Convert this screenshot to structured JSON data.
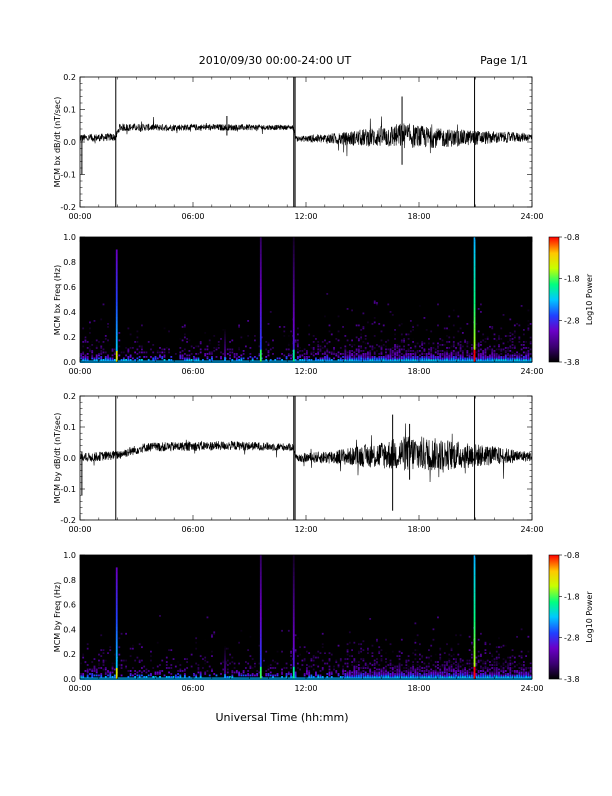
{
  "header": {
    "title": "2010/09/30  00:00-24:00 UT",
    "page": "Page 1/1"
  },
  "footer": {
    "xlabel": "Universal Time (hh:mm)"
  },
  "colors": {
    "spectrogram_background": "#000000",
    "trace": "#000000",
    "colormap": [
      "#000000",
      "#3a0070",
      "#6a00c8",
      "#2040ff",
      "#00c8ff",
      "#00ff80",
      "#c8ff00",
      "#ffc800",
      "#ff0000"
    ]
  },
  "chart_data": [
    {
      "type": "line",
      "ylabel": "MCM bx dB/dt (nT/sec)",
      "xlim": [
        0,
        24
      ],
      "ylim": [
        -0.2,
        0.2
      ],
      "x_ticks": [
        "00:00",
        "06:00",
        "12:00",
        "18:00",
        "24:00"
      ],
      "y_ticks": [
        "0.2",
        "0.1",
        "0.0",
        "-0.1",
        "-0.2"
      ],
      "envelope": [
        {
          "t": 0.0,
          "mean": 0.012,
          "amp": 0.012
        },
        {
          "t": 1.9,
          "mean": 0.015,
          "amp": 0.012
        },
        {
          "t": 2.1,
          "mean": 0.045,
          "amp": 0.012
        },
        {
          "t": 6.0,
          "mean": 0.045,
          "amp": 0.01
        },
        {
          "t": 8.0,
          "mean": 0.045,
          "amp": 0.01
        },
        {
          "t": 11.3,
          "mean": 0.045,
          "amp": 0.007
        },
        {
          "t": 11.5,
          "mean": 0.01,
          "amp": 0.008
        },
        {
          "t": 14.0,
          "mean": 0.01,
          "amp": 0.02
        },
        {
          "t": 17.2,
          "mean": 0.02,
          "amp": 0.04
        },
        {
          "t": 19.0,
          "mean": 0.012,
          "amp": 0.03
        },
        {
          "t": 24.0,
          "mean": 0.015,
          "amp": 0.012
        }
      ],
      "spikes": [
        {
          "t": 0.1,
          "min": -0.1,
          "max": 0.02
        },
        {
          "t": 1.9,
          "min": -0.2,
          "max": 0.2
        },
        {
          "t": 11.35,
          "min": -0.2,
          "max": 0.2
        },
        {
          "t": 11.42,
          "min": -0.2,
          "max": 0.2
        },
        {
          "t": 7.8,
          "min": 0.02,
          "max": 0.08
        },
        {
          "t": 17.1,
          "min": -0.07,
          "max": 0.14
        },
        {
          "t": 20.95,
          "min": -0.2,
          "max": 0.2
        }
      ]
    },
    {
      "type": "heatmap",
      "ylabel": "MCM bx Freq (Hz)",
      "xlim": [
        0,
        24
      ],
      "ylim": [
        0,
        1
      ],
      "x_ticks": [
        "00:00",
        "06:00",
        "12:00",
        "18:00",
        "24:00"
      ],
      "y_ticks": [
        "1.0",
        "0.8",
        "0.6",
        "0.4",
        "0.2",
        "0.0"
      ],
      "colorbar": {
        "label": "Log10 Power",
        "range": [
          -3.8,
          -0.8
        ],
        "ticks": [
          "-0.8",
          "-1.8",
          "-2.8",
          "-3.8"
        ]
      },
      "vertical_lines": [
        {
          "t": 1.95,
          "top": 0.9,
          "power": -2.2
        },
        {
          "t": 7.7,
          "top": 0.4,
          "power": -3.2
        },
        {
          "t": 9.6,
          "top": 1.0,
          "power": -2.6
        },
        {
          "t": 11.35,
          "top": 1.0,
          "power": -2.8
        },
        {
          "t": 20.95,
          "top": 1.0,
          "power": -1.5
        }
      ]
    },
    {
      "type": "line",
      "ylabel": "MCM by dB/dt (nT/sec)",
      "xlim": [
        0,
        24
      ],
      "ylim": [
        -0.2,
        0.2
      ],
      "x_ticks": [
        "00:00",
        "06:00",
        "12:00",
        "18:00",
        "24:00"
      ],
      "y_ticks": [
        "0.2",
        "0.1",
        "0.0",
        "-0.1",
        "-0.2"
      ],
      "envelope": [
        {
          "t": 0.0,
          "mean": 0.0,
          "amp": 0.015
        },
        {
          "t": 2.0,
          "mean": 0.01,
          "amp": 0.015
        },
        {
          "t": 3.5,
          "mean": 0.035,
          "amp": 0.015
        },
        {
          "t": 8.0,
          "mean": 0.04,
          "amp": 0.015
        },
        {
          "t": 11.3,
          "mean": 0.035,
          "amp": 0.012
        },
        {
          "t": 11.5,
          "mean": 0.0,
          "amp": 0.012
        },
        {
          "t": 14.5,
          "mean": 0.005,
          "amp": 0.03
        },
        {
          "t": 17.5,
          "mean": 0.015,
          "amp": 0.06
        },
        {
          "t": 19.5,
          "mean": 0.01,
          "amp": 0.05
        },
        {
          "t": 24.0,
          "mean": 0.005,
          "amp": 0.015
        }
      ],
      "spikes": [
        {
          "t": 0.1,
          "min": -0.12,
          "max": 0.02
        },
        {
          "t": 1.9,
          "min": -0.2,
          "max": 0.2
        },
        {
          "t": 11.35,
          "min": -0.2,
          "max": 0.2
        },
        {
          "t": 11.42,
          "min": -0.2,
          "max": 0.2
        },
        {
          "t": 16.6,
          "min": -0.17,
          "max": 0.14
        },
        {
          "t": 17.5,
          "min": -0.07,
          "max": 0.11
        },
        {
          "t": 20.95,
          "min": -0.2,
          "max": 0.2
        }
      ]
    },
    {
      "type": "heatmap",
      "ylabel": "MCM by Freq (Hz)",
      "xlim": [
        0,
        24
      ],
      "ylim": [
        0,
        1
      ],
      "x_ticks": [
        "00:00",
        "06:00",
        "12:00",
        "18:00",
        "24:00"
      ],
      "y_ticks": [
        "1.0",
        "0.8",
        "0.6",
        "0.4",
        "0.2",
        "0.0"
      ],
      "colorbar": {
        "label": "Log10 Power",
        "range": [
          -3.8,
          -0.8
        ],
        "ticks": [
          "-0.8",
          "-1.8",
          "-2.8",
          "-3.8"
        ]
      },
      "vertical_lines": [
        {
          "t": 1.95,
          "top": 0.9,
          "power": -2.2
        },
        {
          "t": 7.7,
          "top": 0.4,
          "power": -3.2
        },
        {
          "t": 9.6,
          "top": 1.0,
          "power": -2.6
        },
        {
          "t": 11.35,
          "top": 1.0,
          "power": -2.8
        },
        {
          "t": 20.95,
          "top": 1.0,
          "power": -1.5
        }
      ]
    }
  ]
}
